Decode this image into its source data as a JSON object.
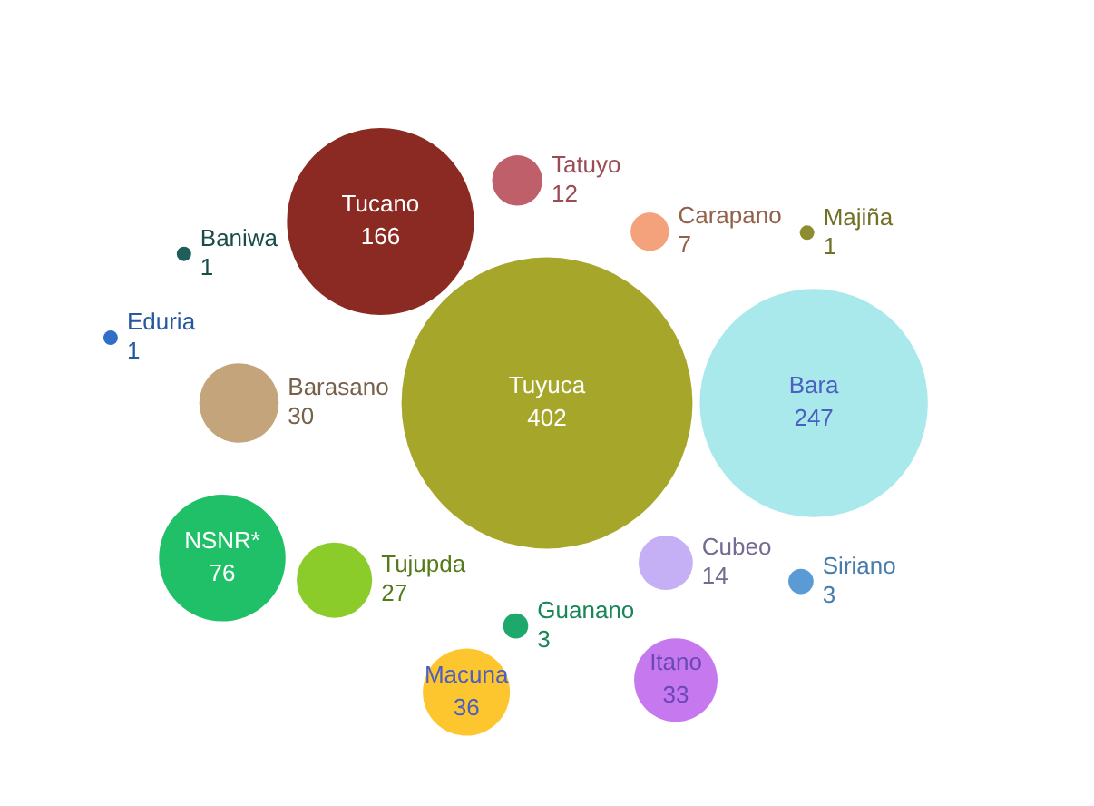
{
  "chart_data": {
    "type": "other",
    "categories": [
      "Siriano",
      "Bara",
      "Tuyuca",
      "Eduria",
      "Carapano",
      "Guanano",
      "Itano",
      "Tujupda",
      "Tucano",
      "Barasano",
      "Majiña",
      "Macuna",
      "Cubeo",
      "Tatuyo",
      "Baniwa",
      "NSNR*"
    ],
    "values": [
      3,
      247,
      402,
      1,
      7,
      3,
      33,
      27,
      166,
      30,
      1,
      36,
      14,
      12,
      1,
      76
    ],
    "colors": [
      "#5b9bd5",
      "#a9e9ec",
      "#a6a62b",
      "#2f6fc8",
      "#f4a27c",
      "#1ea86b",
      "#c678ef",
      "#8ccc2a",
      "#8b2a22",
      "#c4a47a",
      "#8c8c30",
      "#fec62e",
      "#c5b0f5",
      "#bf5f6a",
      "#1f5f5a",
      "#20c068"
    ],
    "data_labels": true
  }
}
